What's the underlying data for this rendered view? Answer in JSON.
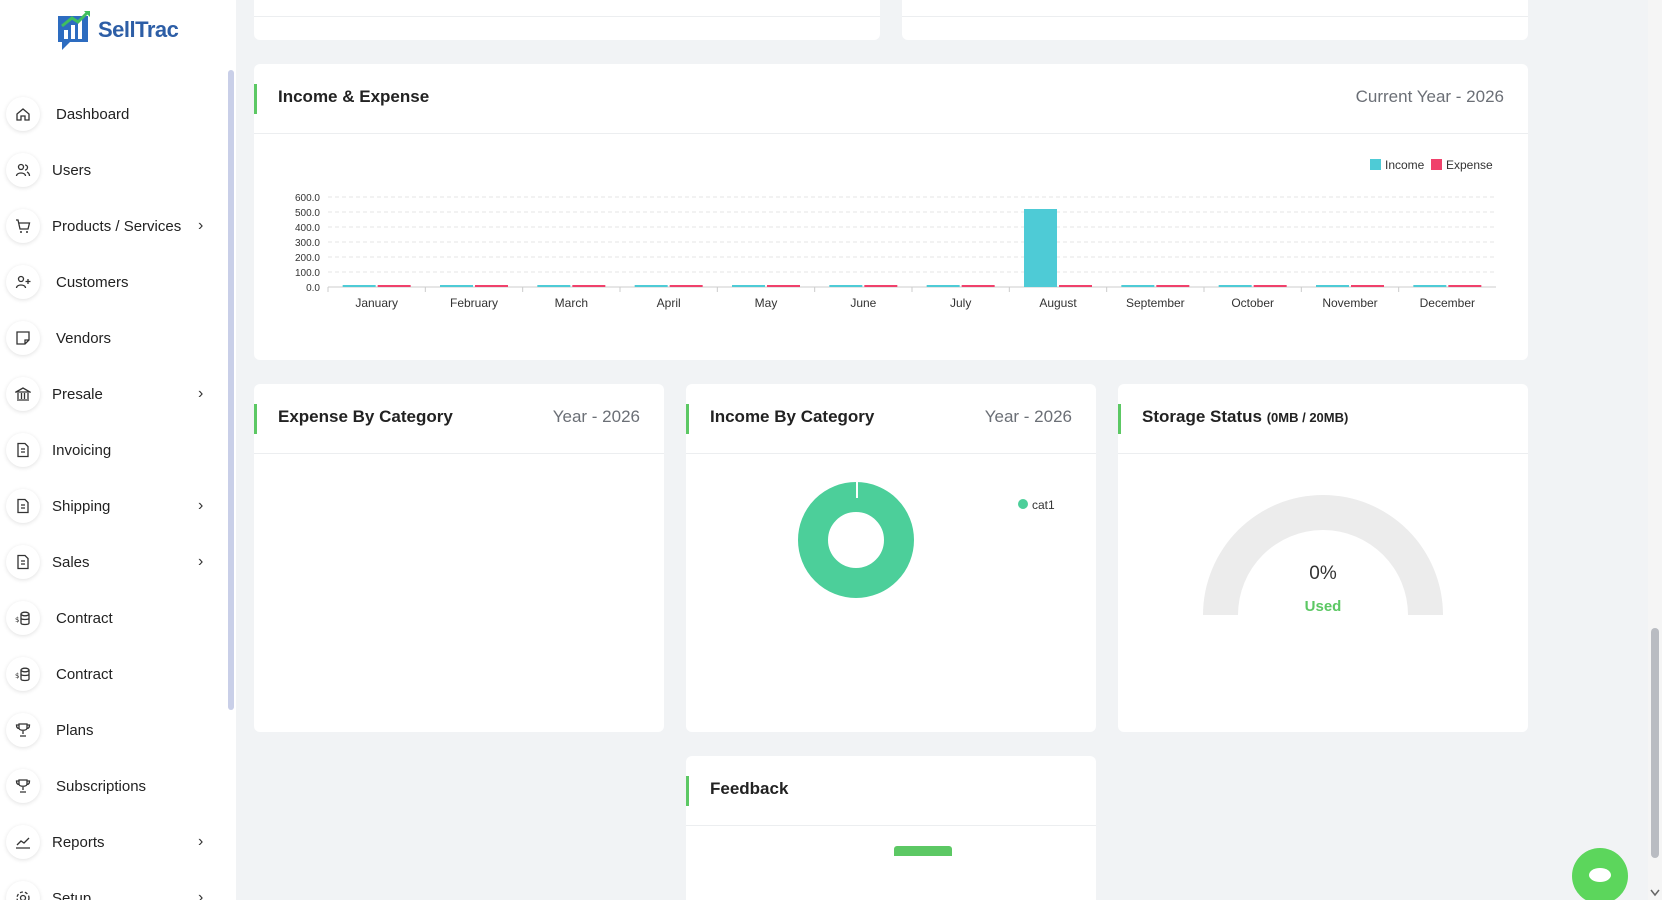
{
  "brand": {
    "name": "SellTrac",
    "color": "#2d5ea6",
    "accent": "#5cc864"
  },
  "sidebar": {
    "items": [
      {
        "label": "Dashboard",
        "icon": "home-icon",
        "has_submenu": false
      },
      {
        "label": "Users",
        "icon": "users-icon",
        "has_submenu": false
      },
      {
        "label": "Products / Services",
        "icon": "cart-icon",
        "has_submenu": true
      },
      {
        "label": "Customers",
        "icon": "user-plus-icon",
        "has_submenu": false
      },
      {
        "label": "Vendors",
        "icon": "note-icon",
        "has_submenu": false
      },
      {
        "label": "Presale",
        "icon": "bank-icon",
        "has_submenu": true
      },
      {
        "label": "Invoicing",
        "icon": "file-icon",
        "has_submenu": false
      },
      {
        "label": "Shipping",
        "icon": "file-icon",
        "has_submenu": true
      },
      {
        "label": "Sales",
        "icon": "file-icon",
        "has_submenu": true
      },
      {
        "label": "Contract",
        "icon": "coins-icon",
        "has_submenu": false
      },
      {
        "label": "Contract",
        "icon": "coins-icon",
        "has_submenu": false
      },
      {
        "label": "Plans",
        "icon": "trophy-icon",
        "has_submenu": false
      },
      {
        "label": "Subscriptions",
        "icon": "trophy-icon",
        "has_submenu": false
      },
      {
        "label": "Reports",
        "icon": "chart-line-icon",
        "has_submenu": true
      },
      {
        "label": "Setup",
        "icon": "settings-icon",
        "has_submenu": true
      }
    ]
  },
  "income_expense": {
    "title": "Income & Expense",
    "period": "Current Year - 2026"
  },
  "expense_by_category": {
    "title": "Expense By Category",
    "period": "Year - 2026"
  },
  "income_by_category": {
    "title": "Income By Category",
    "period": "Year - 2026",
    "legend": "cat1",
    "color": "#4ccf9a"
  },
  "storage": {
    "title": "Storage Status",
    "sub": "(0MB / 20MB)",
    "percent_text": "0%",
    "used_label": "Used",
    "used_fraction": 0
  },
  "feedback": {
    "title": "Feedback"
  },
  "chart_data": [
    {
      "type": "bar",
      "categories": [
        "January",
        "February",
        "March",
        "April",
        "May",
        "June",
        "July",
        "August",
        "September",
        "October",
        "November",
        "December"
      ],
      "series": [
        {
          "name": "Income",
          "color": "#4ecbd6",
          "values": [
            0,
            0,
            0,
            0,
            0,
            0,
            0,
            520,
            0,
            0,
            0,
            0
          ]
        },
        {
          "name": "Expense",
          "color": "#f0416b",
          "values": [
            0,
            0,
            0,
            0,
            0,
            0,
            0,
            0,
            0,
            0,
            0,
            0
          ]
        }
      ],
      "yticks": [
        "0.0",
        "100.0",
        "200.0",
        "300.0",
        "400.0",
        "500.0",
        "600.0"
      ],
      "ylim": [
        0,
        600
      ],
      "legend": "top-right",
      "grid": true
    },
    {
      "type": "pie",
      "categories": [
        "cat1"
      ],
      "values": [
        100
      ],
      "legend": "top-right"
    }
  ]
}
